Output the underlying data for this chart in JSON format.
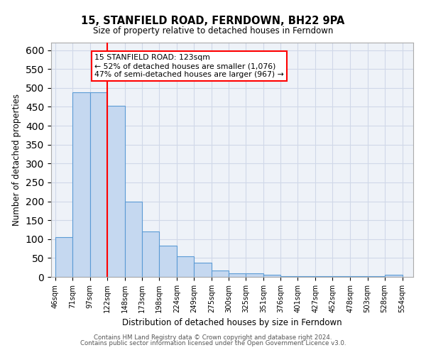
{
  "title1": "15, STANFIELD ROAD, FERNDOWN, BH22 9PA",
  "title2": "Size of property relative to detached houses in Ferndown",
  "xlabel": "Distribution of detached houses by size in Ferndown",
  "ylabel": "Number of detached properties",
  "bar_left_edges": [
    46,
    71,
    97,
    122,
    148,
    173,
    198,
    224,
    249,
    275,
    300,
    325,
    351,
    376,
    401,
    427,
    452,
    478,
    503,
    528
  ],
  "bar_widths": [
    25,
    26,
    25,
    26,
    25,
    25,
    26,
    25,
    26,
    25,
    25,
    26,
    25,
    25,
    26,
    25,
    26,
    25,
    25,
    26
  ],
  "bar_heights": [
    105,
    488,
    488,
    453,
    200,
    120,
    83,
    55,
    37,
    17,
    10,
    10,
    5,
    2,
    2,
    2,
    2,
    1,
    1,
    5
  ],
  "bar_color": "#c5d8f0",
  "bar_edge_color": "#5b9bd5",
  "grid_color": "#d0d8e8",
  "bg_color": "#eef2f8",
  "property_line_x": 122,
  "property_line_color": "red",
  "annotation_line1": "15 STANFIELD ROAD: 123sqm",
  "annotation_line2": "← 52% of detached houses are smaller (1,076)",
  "annotation_line3": "47% of semi-detached houses are larger (967) →",
  "tick_labels": [
    "46sqm",
    "71sqm",
    "97sqm",
    "122sqm",
    "148sqm",
    "173sqm",
    "198sqm",
    "224sqm",
    "249sqm",
    "275sqm",
    "300sqm",
    "325sqm",
    "351sqm",
    "376sqm",
    "401sqm",
    "427sqm",
    "452sqm",
    "478sqm",
    "503sqm",
    "528sqm",
    "554sqm"
  ],
  "tick_positions": [
    46,
    71,
    97,
    122,
    148,
    173,
    198,
    224,
    249,
    275,
    300,
    325,
    351,
    376,
    401,
    427,
    452,
    478,
    503,
    528,
    554
  ],
  "ylim": [
    0,
    620
  ],
  "xlim": [
    40,
    570
  ],
  "footer1": "Contains HM Land Registry data © Crown copyright and database right 2024.",
  "footer2": "Contains public sector information licensed under the Open Government Licence v3.0."
}
